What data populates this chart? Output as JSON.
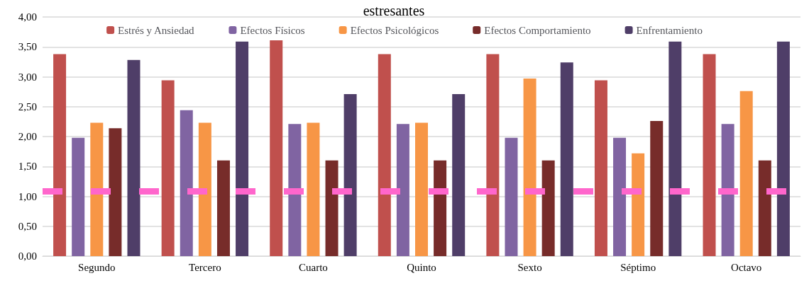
{
  "chart_data": {
    "type": "bar",
    "title": "estresantes",
    "categories": [
      "Segundo",
      "Tercero",
      "Cuarto",
      "Quinto",
      "Sexto",
      "Séptimo",
      "Octavo"
    ],
    "series": [
      {
        "name": "Estrés y Ansiedad",
        "color": "#c0504d",
        "values": [
          3.38,
          2.94,
          3.61,
          3.38,
          3.38,
          2.94,
          3.38
        ]
      },
      {
        "name": "Efectos Físicos",
        "color": "#8064a2",
        "values": [
          1.98,
          2.44,
          2.21,
          2.21,
          1.98,
          1.98,
          2.21
        ]
      },
      {
        "name": "Efectos Psicológicos",
        "color": "#f79646",
        "values": [
          2.23,
          2.23,
          2.23,
          2.23,
          2.97,
          1.72,
          2.76
        ]
      },
      {
        "name": "Efectos Comportamiento",
        "color": "#772c2a",
        "values": [
          2.14,
          1.6,
          1.6,
          1.6,
          1.6,
          2.26,
          1.6
        ]
      },
      {
        "name": "Enfrentamiento",
        "color": "#4f3e68",
        "values": [
          3.28,
          3.59,
          2.71,
          2.71,
          3.24,
          3.59,
          3.59
        ]
      }
    ],
    "ylim": [
      0,
      4
    ],
    "yticks": [
      {
        "value": 0,
        "label": "0,00"
      },
      {
        "value": 0.5,
        "label": "0,50"
      },
      {
        "value": 1,
        "label": "1,00"
      },
      {
        "value": 1.5,
        "label": "1,50"
      },
      {
        "value": 2,
        "label": "2,00"
      },
      {
        "value": 2.5,
        "label": "2,50"
      },
      {
        "value": 3,
        "label": "3,00"
      },
      {
        "value": 3.5,
        "label": "3,50"
      },
      {
        "value": 4,
        "label": "4,00"
      }
    ],
    "ref_lines": [
      {
        "axis": "y",
        "value": 1.08,
        "color": "#ff66cc",
        "line_style": "dashed"
      }
    ],
    "grid": "y",
    "legend": "top"
  }
}
